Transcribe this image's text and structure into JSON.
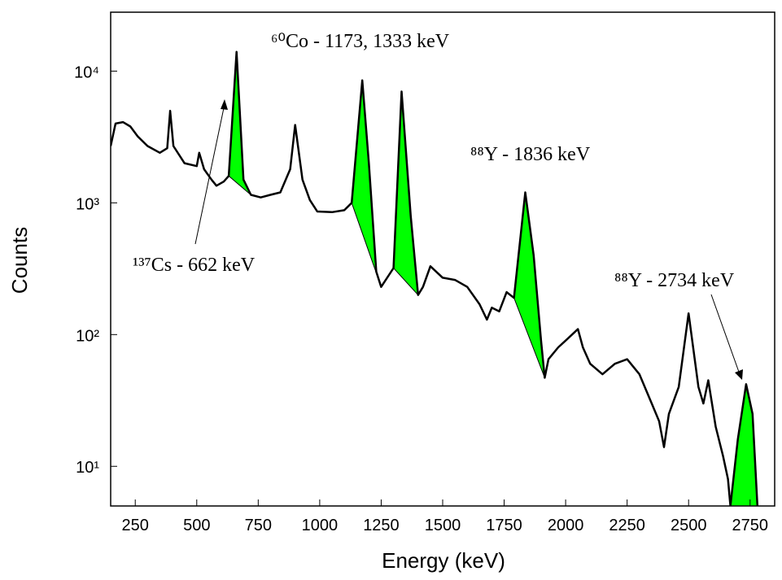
{
  "chart_data": {
    "type": "line",
    "x_label": "Energy (keV)",
    "y_label": "Counts",
    "x": [
      150,
      170,
      200,
      230,
      260,
      300,
      350,
      380,
      392,
      405,
      450,
      500,
      510,
      530,
      560,
      580,
      610,
      630,
      662,
      690,
      720,
      760,
      800,
      840,
      880,
      900,
      930,
      960,
      990,
      1050,
      1100,
      1130,
      1173,
      1200,
      1230,
      1250,
      1300,
      1333,
      1370,
      1400,
      1420,
      1450,
      1500,
      1550,
      1600,
      1650,
      1680,
      1700,
      1730,
      1760,
      1790,
      1836,
      1870,
      1900,
      1915,
      1930,
      1970,
      2000,
      2050,
      2070,
      2100,
      2150,
      2200,
      2250,
      2300,
      2350,
      2380,
      2400,
      2420,
      2460,
      2500,
      2540,
      2560,
      2580,
      2610,
      2640,
      2660,
      2670,
      2700,
      2734,
      2760,
      2780
    ],
    "series": [
      {
        "color": "#000000",
        "values": [
          2700,
          4000,
          4100,
          3800,
          3200,
          2700,
          2400,
          2600,
          5000,
          2700,
          2000,
          1900,
          2400,
          1800,
          1500,
          1350,
          1450,
          1600,
          14000,
          1500,
          1150,
          1100,
          1150,
          1200,
          1800,
          3900,
          1500,
          1050,
          860,
          850,
          880,
          1000,
          8500,
          2000,
          300,
          230,
          320,
          7000,
          800,
          200,
          230,
          330,
          270,
          260,
          230,
          170,
          130,
          160,
          150,
          210,
          190,
          1200,
          400,
          90,
          47,
          65,
          80,
          90,
          110,
          80,
          60,
          50,
          60,
          65,
          50,
          30,
          22,
          14,
          25,
          40,
          145,
          40,
          30,
          45,
          20,
          12,
          8,
          5,
          16,
          42,
          25,
          5
        ]
      }
    ],
    "highlight_regions": [
      [
        620,
        720
      ],
      [
        1110,
        1250
      ],
      [
        1260,
        1400
      ],
      [
        1780,
        1915
      ],
      [
        2670,
        2780
      ]
    ],
    "highlight_color": "#00ff00",
    "xlim": [
      150,
      2850
    ],
    "xticks": [
      250,
      500,
      750,
      1000,
      1250,
      1500,
      1750,
      2000,
      2250,
      2500,
      2750
    ],
    "ylim": [
      5,
      28000
    ],
    "y_log": true,
    "yticks": [
      {
        "value": 10,
        "label": "10¹"
      },
      {
        "value": 100,
        "label": "10²"
      },
      {
        "value": 1000,
        "label": "10³"
      },
      {
        "value": 10000,
        "label": "10⁴"
      }
    ],
    "annotations": [
      "⁶⁰Co - 1173, 1333 keV",
      "⁸⁸Y - 1836 keV",
      "¹³⁷Cs - 662 keV",
      "⁸⁸Y - 2734 keV"
    ]
  }
}
